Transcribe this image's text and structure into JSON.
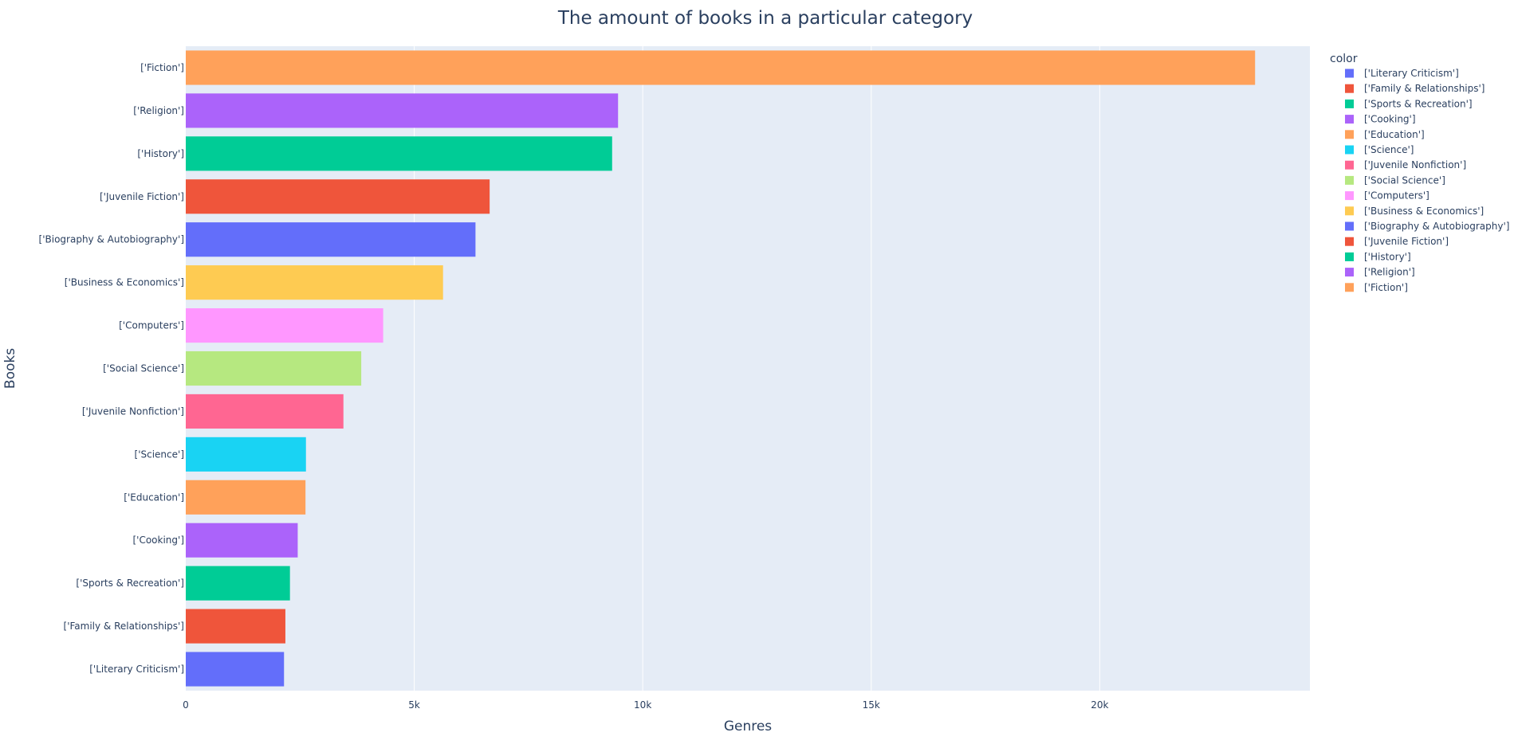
{
  "chart_data": {
    "type": "bar",
    "orientation": "horizontal",
    "title": "The amount of books in a particular category",
    "xlabel": "Genres",
    "ylabel": "Books",
    "xlim": [
      0,
      24600
    ],
    "x_ticks": [
      0,
      5000,
      10000,
      15000,
      20000
    ],
    "x_tick_labels": [
      "0",
      "5k",
      "10k",
      "15k",
      "20k"
    ],
    "grid": true,
    "legend_title": "color",
    "legend_position": "right",
    "categories": [
      "['Literary Criticism']",
      "['Family & Relationships']",
      "['Sports & Recreation']",
      "['Cooking']",
      "['Education']",
      "['Science']",
      "['Juvenile Nonfiction']",
      "['Social Science']",
      "['Computers']",
      "['Business & Economics']",
      "['Biography & Autobiography']",
      "['Juvenile Fiction']",
      "['History']",
      "['Religion']",
      "['Fiction']"
    ],
    "values": [
      2150,
      2180,
      2280,
      2450,
      2620,
      2630,
      3450,
      3840,
      4320,
      5630,
      6340,
      6650,
      9330,
      9460,
      23400
    ],
    "colors": [
      "#636efa",
      "#EF553B",
      "#00cc96",
      "#ab63fa",
      "#FFA15A",
      "#19d3f3",
      "#FF6692",
      "#B6E880",
      "#FF97FF",
      "#FECB52",
      "#636efa",
      "#EF553B",
      "#00cc96",
      "#ab63fa",
      "#FFA15A"
    ]
  }
}
